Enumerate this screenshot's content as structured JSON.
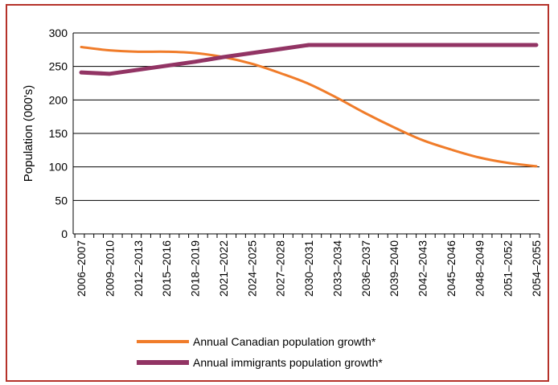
{
  "chart_data": {
    "type": "line",
    "title": "",
    "xlabel": "",
    "ylabel": "Population (000's)",
    "ylim": [
      0,
      300
    ],
    "yticks": [
      0,
      50,
      100,
      150,
      200,
      250,
      300
    ],
    "grid": "horizontal",
    "legend_position": "bottom",
    "categories": [
      "2006–2007",
      "2009–2010",
      "2012–2013",
      "2015–2016",
      "2018–2019",
      "2021–2022",
      "2024–2025",
      "2027–2028",
      "2030–2031",
      "2033–2034",
      "2036–2037",
      "2039–2040",
      "2042–2043",
      "2045–2046",
      "2048–2049",
      "2051–2052",
      "2054–2055"
    ],
    "series": [
      {
        "name": "Annual Canadian population growth*",
        "color": "#f07c2a",
        "values": [
          279,
          274,
          272,
          272,
          270,
          264,
          254,
          240,
          224,
          203,
          180,
          159,
          140,
          126,
          114,
          106,
          101
        ]
      },
      {
        "name": "Annual immigrants population growth*",
        "color": "#923464",
        "values": [
          241,
          239,
          245,
          251,
          257,
          264,
          270,
          276,
          282,
          282,
          282,
          282,
          282,
          282,
          282,
          282,
          282
        ]
      }
    ]
  }
}
